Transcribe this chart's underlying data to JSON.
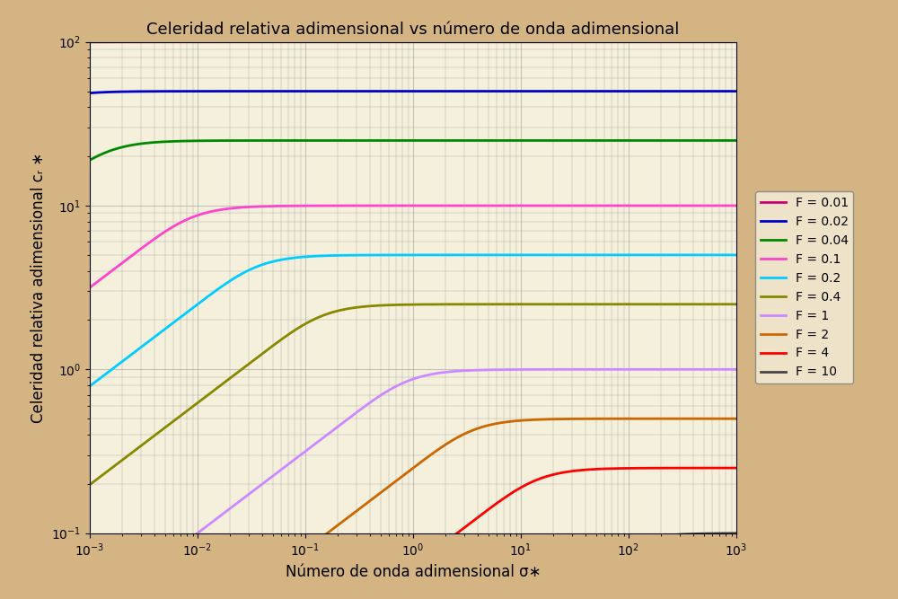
{
  "title": "Celeridad relativa adimensional vs número de onda adimensional",
  "xlabel": "Número de onda adimensional σ∗",
  "ylabel": "Celeridad relativa adimensional cᵣ ∗",
  "F_values": [
    0.01,
    0.02,
    0.04,
    0.1,
    0.2,
    0.4,
    1,
    2,
    4,
    10
  ],
  "colors": [
    "#cc0077",
    "#0000cc",
    "#008800",
    "#ff44cc",
    "#00ccff",
    "#888800",
    "#cc88ff",
    "#cc6600",
    "#ff0000",
    "#444444"
  ],
  "xlim_log": [
    -3,
    3
  ],
  "ylim_log": [
    -1,
    2
  ],
  "background_color": "#d4b483",
  "plot_bg_color": "#f5f0dc",
  "grid_color": "#aaaaaa",
  "legend_labels": [
    "F = 0.01",
    "F = 0.02",
    "F = 0.04",
    "F = 0.1",
    "F = 0.2",
    "F = 0.4",
    "F = 1",
    "F = 2",
    "F = 4",
    "F = 10"
  ],
  "linewidth": 2.0,
  "n_points": 2000,
  "title_fontsize": 13,
  "label_fontsize": 12,
  "tick_fontsize": 10,
  "legend_fontsize": 10
}
